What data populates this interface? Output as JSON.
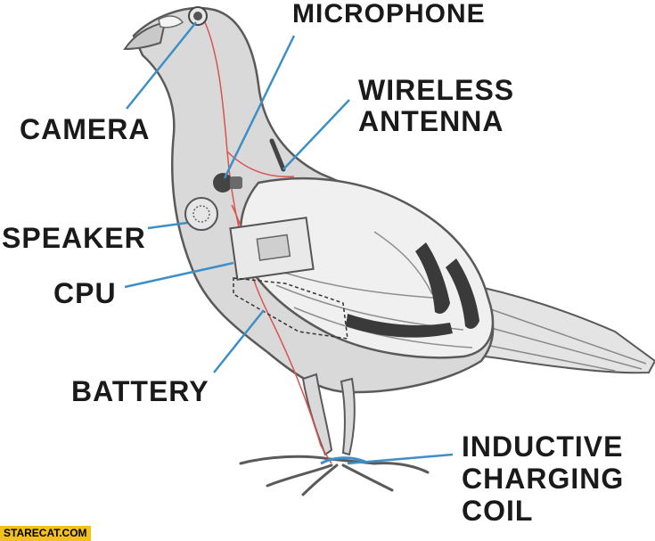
{
  "labels": {
    "camera": "CAMERA",
    "microphone": "MICROPHONE",
    "wireless_antenna": [
      "WIRELESS",
      "ANTENNA"
    ],
    "speaker": "SPEAKER",
    "cpu": "CPU",
    "battery": "BATTERY",
    "inductive_charging_coil": [
      "INDUCTIVE",
      "CHARGING",
      "COIL"
    ]
  },
  "watermark": "STARECAT.COM",
  "colors": {
    "leader_line": "#3d8fc6",
    "body_fill": "#d9d9d9",
    "wing_fill": "#efefef",
    "wire": "#d9534f",
    "outline": "#5a5a5a",
    "stripe": "#3a3a3a",
    "watermark_bg": "#f2c21a"
  }
}
